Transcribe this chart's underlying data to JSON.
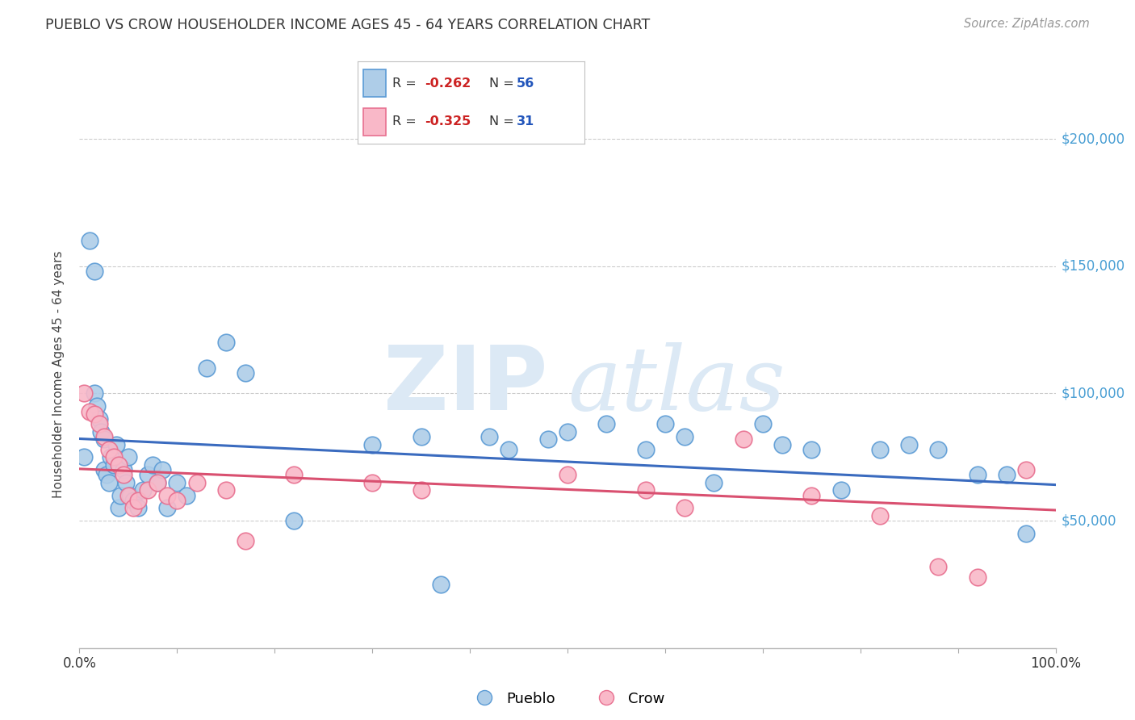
{
  "title": "PUEBLO VS CROW HOUSEHOLDER INCOME AGES 45 - 64 YEARS CORRELATION CHART",
  "source": "Source: ZipAtlas.com",
  "ylabel": "Householder Income Ages 45 - 64 years",
  "y_tick_labels": [
    "$50,000",
    "$100,000",
    "$150,000",
    "$200,000"
  ],
  "y_tick_values": [
    50000,
    100000,
    150000,
    200000
  ],
  "y_min": 0,
  "y_max": 215000,
  "x_min": 0.0,
  "x_max": 1.0,
  "pueblo_color": "#aecde8",
  "crow_color": "#f9b8c8",
  "pueblo_edge_color": "#5b9bd5",
  "crow_edge_color": "#e87090",
  "pueblo_line_color": "#3a6bbf",
  "crow_line_color": "#d95070",
  "pueblo_R": -0.262,
  "pueblo_N": 56,
  "crow_R": -0.325,
  "crow_N": 31,
  "pueblo_x": [
    0.005,
    0.01,
    0.015,
    0.015,
    0.018,
    0.02,
    0.022,
    0.025,
    0.025,
    0.028,
    0.03,
    0.032,
    0.035,
    0.038,
    0.04,
    0.042,
    0.045,
    0.048,
    0.05,
    0.052,
    0.055,
    0.06,
    0.065,
    0.07,
    0.075,
    0.08,
    0.085,
    0.09,
    0.1,
    0.11,
    0.13,
    0.15,
    0.17,
    0.22,
    0.3,
    0.35,
    0.37,
    0.42,
    0.44,
    0.48,
    0.5,
    0.54,
    0.58,
    0.6,
    0.62,
    0.65,
    0.7,
    0.72,
    0.75,
    0.78,
    0.82,
    0.85,
    0.88,
    0.92,
    0.95,
    0.97
  ],
  "pueblo_y": [
    75000,
    160000,
    148000,
    100000,
    95000,
    90000,
    85000,
    82000,
    70000,
    68000,
    65000,
    75000,
    72000,
    80000,
    55000,
    60000,
    70000,
    65000,
    75000,
    60000,
    58000,
    55000,
    62000,
    68000,
    72000,
    65000,
    70000,
    55000,
    65000,
    60000,
    110000,
    120000,
    108000,
    50000,
    80000,
    83000,
    25000,
    83000,
    78000,
    82000,
    85000,
    88000,
    78000,
    88000,
    83000,
    65000,
    88000,
    80000,
    78000,
    62000,
    78000,
    80000,
    78000,
    68000,
    68000,
    45000
  ],
  "crow_x": [
    0.005,
    0.01,
    0.015,
    0.02,
    0.025,
    0.03,
    0.035,
    0.04,
    0.045,
    0.05,
    0.055,
    0.06,
    0.07,
    0.08,
    0.09,
    0.1,
    0.12,
    0.15,
    0.17,
    0.22,
    0.3,
    0.35,
    0.5,
    0.58,
    0.62,
    0.68,
    0.75,
    0.82,
    0.88,
    0.92,
    0.97
  ],
  "crow_y": [
    100000,
    93000,
    92000,
    88000,
    83000,
    78000,
    75000,
    72000,
    68000,
    60000,
    55000,
    58000,
    62000,
    65000,
    60000,
    58000,
    65000,
    62000,
    42000,
    68000,
    65000,
    62000,
    68000,
    62000,
    55000,
    82000,
    60000,
    52000,
    32000,
    28000,
    70000
  ],
  "background_color": "#ffffff",
  "grid_color": "#cccccc",
  "watermark_zip": "ZIP",
  "watermark_atlas": "atlas",
  "watermark_color": "#dce9f5",
  "legend_pueblo_R": "R = ",
  "legend_pueblo_R_val": "-0.262",
  "legend_pueblo_N": "N = ",
  "legend_pueblo_N_val": "56",
  "legend_crow_R": "R = ",
  "legend_crow_R_val": "-0.325",
  "legend_crow_N": "N = ",
  "legend_crow_N_val": "31"
}
